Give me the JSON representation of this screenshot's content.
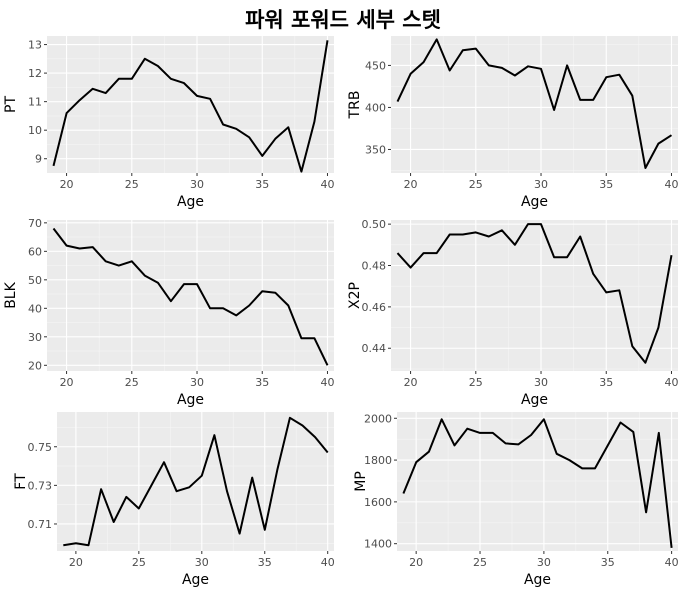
{
  "title": "파워 포워드 세부 스텟",
  "colors": {
    "panel_bg": "#ebebeb",
    "grid_major": "#ffffff",
    "grid_minor": "#f5f5f5",
    "line": "#000000",
    "tick_text": "#4d4d4d"
  },
  "chart_data": [
    {
      "type": "line",
      "xlabel": "Age",
      "ylabel": "PT",
      "xlim": [
        18.5,
        40.5
      ],
      "ylim": [
        8.5,
        13.3
      ],
      "xticks": [
        20,
        25,
        30,
        35,
        40
      ],
      "yticks": [
        9,
        10,
        11,
        12,
        13
      ],
      "x": [
        19,
        20,
        21,
        22,
        23,
        24,
        25,
        26,
        27,
        28,
        29,
        30,
        31,
        32,
        33,
        34,
        35,
        36,
        37,
        38,
        39,
        40
      ],
      "y": [
        8.75,
        10.6,
        11.05,
        11.45,
        11.3,
        11.8,
        11.8,
        12.5,
        12.25,
        11.8,
        11.65,
        11.2,
        11.1,
        10.2,
        10.05,
        9.75,
        9.1,
        9.7,
        10.1,
        8.55,
        10.3,
        13.15
      ]
    },
    {
      "type": "line",
      "xlabel": "Age",
      "ylabel": "TRB",
      "xlim": [
        18.5,
        40.5
      ],
      "ylim": [
        322,
        485
      ],
      "xticks": [
        20,
        25,
        30,
        35,
        40
      ],
      "yticks": [
        350,
        400,
        450
      ],
      "x": [
        19,
        20,
        21,
        22,
        23,
        24,
        25,
        26,
        27,
        28,
        29,
        30,
        31,
        32,
        33,
        34,
        35,
        36,
        37,
        38,
        39,
        40
      ],
      "y": [
        407,
        440,
        454,
        481,
        444,
        468,
        470,
        450,
        447,
        438,
        449,
        446,
        397,
        450,
        409,
        409,
        436,
        439,
        414,
        328,
        357,
        367
      ]
    },
    {
      "type": "line",
      "xlabel": "Age",
      "ylabel": "BLK",
      "xlim": [
        18.5,
        40.5
      ],
      "ylim": [
        18,
        71
      ],
      "xticks": [
        20,
        25,
        30,
        35,
        40
      ],
      "yticks": [
        20,
        30,
        40,
        50,
        60,
        70
      ],
      "x": [
        19,
        20,
        21,
        22,
        23,
        24,
        25,
        26,
        27,
        28,
        29,
        30,
        31,
        32,
        33,
        34,
        35,
        36,
        37,
        38,
        39,
        40
      ],
      "y": [
        68,
        62,
        61,
        61.5,
        56.5,
        55,
        56.5,
        51.5,
        49,
        42.5,
        48.5,
        48.5,
        40,
        40,
        37.5,
        41,
        46,
        45.5,
        41,
        29.5,
        29.5,
        20
      ]
    },
    {
      "type": "line",
      "xlabel": "Age",
      "ylabel": "X2P",
      "xlim": [
        18.5,
        40.5
      ],
      "ylim": [
        0.429,
        0.502
      ],
      "xticks": [
        20,
        25,
        30,
        35,
        40
      ],
      "yticks": [
        0.44,
        0.46,
        0.48,
        0.5
      ],
      "ytick_labels": [
        "0.44",
        "0.46",
        "0.48",
        "0.50"
      ],
      "x": [
        19,
        20,
        21,
        22,
        23,
        24,
        25,
        26,
        27,
        28,
        29,
        30,
        31,
        32,
        33,
        34,
        35,
        36,
        37,
        38,
        39,
        40
      ],
      "y": [
        0.486,
        0.479,
        0.486,
        0.486,
        0.495,
        0.495,
        0.496,
        0.494,
        0.497,
        0.49,
        0.5,
        0.5,
        0.484,
        0.484,
        0.494,
        0.476,
        0.467,
        0.468,
        0.441,
        0.433,
        0.45,
        0.485
      ]
    },
    {
      "type": "line",
      "xlabel": "Age",
      "ylabel": "FT",
      "xlim": [
        18.5,
        40.5
      ],
      "ylim": [
        0.696,
        0.768
      ],
      "xticks": [
        20,
        25,
        30,
        35,
        40
      ],
      "yticks": [
        0.71,
        0.73,
        0.75
      ],
      "ytick_labels": [
        "0.71",
        "0.73",
        "0.75"
      ],
      "x": [
        19,
        20,
        21,
        22,
        23,
        24,
        25,
        26,
        27,
        28,
        29,
        30,
        31,
        32,
        33,
        34,
        35,
        36,
        37,
        38,
        39,
        40
      ],
      "y": [
        0.699,
        0.7,
        0.699,
        0.728,
        0.711,
        0.724,
        0.718,
        0.73,
        0.742,
        0.727,
        0.729,
        0.735,
        0.756,
        0.727,
        0.705,
        0.734,
        0.707,
        0.738,
        0.765,
        0.761,
        0.755,
        0.747
      ]
    },
    {
      "type": "line",
      "xlabel": "Age",
      "ylabel": "MP",
      "xlim": [
        18.5,
        40.5
      ],
      "ylim": [
        1365,
        2030
      ],
      "xticks": [
        20,
        25,
        30,
        35,
        40
      ],
      "yticks": [
        1400,
        1600,
        1800,
        2000
      ],
      "x": [
        19,
        20,
        21,
        22,
        23,
        24,
        25,
        26,
        27,
        28,
        29,
        30,
        31,
        32,
        33,
        34,
        35,
        36,
        37,
        38,
        39,
        40
      ],
      "y": [
        1640,
        1790,
        1840,
        1995,
        1870,
        1950,
        1930,
        1930,
        1880,
        1875,
        1920,
        1995,
        1830,
        1800,
        1760,
        1760,
        1870,
        1980,
        1935,
        1550,
        1930,
        1380
      ]
    }
  ]
}
